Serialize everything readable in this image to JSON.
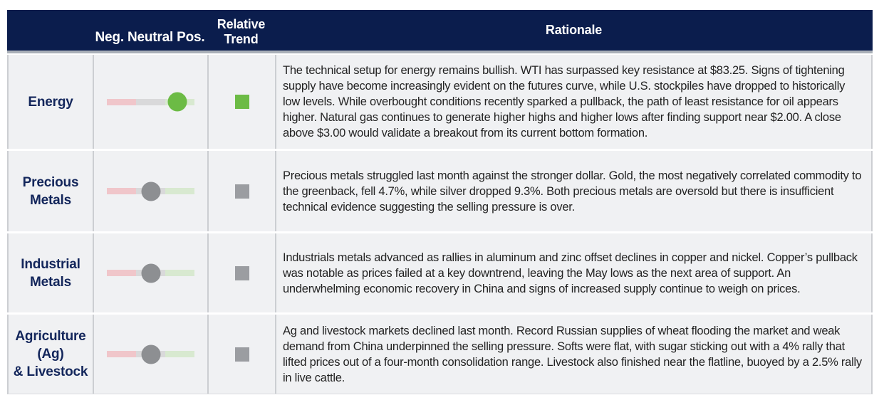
{
  "header": {
    "columns": [
      {
        "label": ""
      },
      {
        "label": "Neg. Neutral Pos."
      },
      {
        "label": "Relative\nTrend"
      },
      {
        "label": "Rationale"
      }
    ]
  },
  "colors": {
    "header_navy": "#0b1d4d",
    "category_navy": "#13265b",
    "positive_green": "#6cbb45",
    "neutral_gray_knob": "#8d8f92",
    "neutral_gray_square": "#9b9da1",
    "track_negative_pink": "#f0c6ca",
    "track_neutral_gray": "#d9d9da",
    "track_positive_green": "#d8e9d0",
    "row_background": "#f0f1f3"
  },
  "rows": [
    {
      "category": "Energy",
      "sentiment": {
        "label": "positive",
        "position_pct": 80,
        "css_left": "80%",
        "color": "#6cbb45"
      },
      "trend": {
        "label": "positive",
        "color": "#6cbb45"
      },
      "rationale": "The technical setup for energy remains bullish. WTI has surpassed key resistance at $83.25. Signs of tightening supply have become increasingly evident on the futures curve, while U.S. stockpiles have dropped to historically low levels. While overbought conditions recently sparked a pullback, the path of least resistance for oil appears higher. Natural gas continues to generate higher highs and higher lows after finding support near $2.00. A close above $3.00 would validate a breakout from its current bottom formation."
    },
    {
      "category": "Precious\nMetals",
      "sentiment": {
        "label": "neutral",
        "position_pct": 50,
        "css_left": "50%",
        "color": "#8d8f92"
      },
      "trend": {
        "label": "neutral",
        "color": "#9b9da1"
      },
      "rationale": "Precious metals struggled last month against the stronger dollar. Gold, the most negatively correlated commodity to the greenback, fell 4.7%, while silver dropped 9.3%. Both precious metals are oversold but there is insufficient technical evidence suggesting the selling pressure is over."
    },
    {
      "category": "Industrial\nMetals",
      "sentiment": {
        "label": "neutral",
        "position_pct": 50,
        "css_left": "50%",
        "color": "#8d8f92"
      },
      "trend": {
        "label": "neutral",
        "color": "#9b9da1"
      },
      "rationale": "Industrials metals advanced as rallies in aluminum and zinc offset declines in copper and nickel. Copper’s pullback was notable as prices failed at a key downtrend, leaving the May lows as the next area of support. An underwhelming economic recovery in China and signs of increased supply continue to weigh on prices."
    },
    {
      "category": "Agriculture\n(Ag)\n& Livestock",
      "sentiment": {
        "label": "neutral",
        "position_pct": 50,
        "css_left": "50%",
        "color": "#8d8f92"
      },
      "trend": {
        "label": "neutral",
        "color": "#9b9da1"
      },
      "rationale": "Ag and livestock markets declined last month. Record Russian supplies of wheat flooding the market and weak demand from China underpinned the selling pressure. Softs were flat, with sugar sticking out with a 4% rally that lifted prices out of a four-month consolidation range. Livestock also finished near the flatline, buoyed by a 2.5% rally in live cattle."
    }
  ]
}
